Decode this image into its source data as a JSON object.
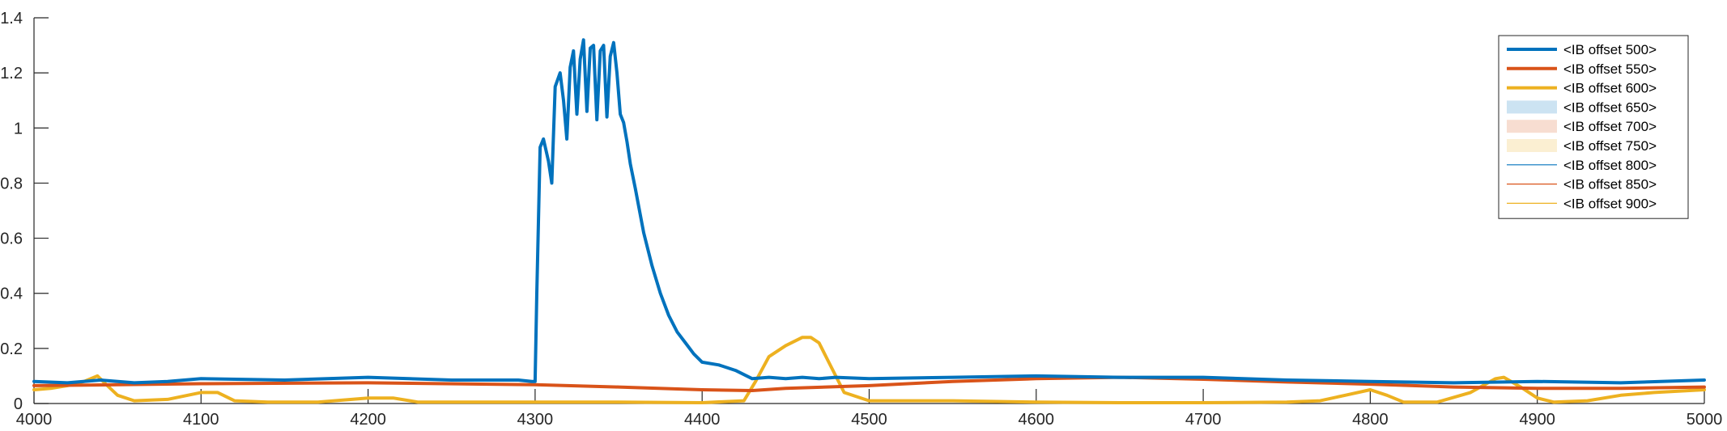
{
  "chart_data": {
    "type": "line",
    "title": "",
    "xlabel": "",
    "ylabel": "",
    "xlim": [
      4000,
      5000
    ],
    "ylim": [
      0,
      1.4
    ],
    "xticks": [
      "4000",
      "4100",
      "4200",
      "4300",
      "4400",
      "4500",
      "4600",
      "4700",
      "4800",
      "4900",
      "5000"
    ],
    "yticks": [
      "0",
      "0.2",
      "0.4",
      "0.6",
      "0.8",
      "1",
      "1.2",
      "1.4"
    ],
    "grid": false,
    "legend_position": "top-right",
    "series": [
      {
        "name": "<IB offset 500>",
        "color": "#0072BD",
        "style": "line-thick",
        "x": [
          4000,
          4020,
          4040,
          4060,
          4080,
          4100,
          4150,
          4200,
          4250,
          4290,
          4298,
          4300,
          4301,
          4303,
          4305,
          4308,
          4310,
          4312,
          4315,
          4317,
          4319,
          4321,
          4323,
          4325,
          4327,
          4329,
          4331,
          4333,
          4335,
          4337,
          4339,
          4341,
          4343,
          4345,
          4347,
          4349,
          4351,
          4353,
          4355,
          4357,
          4360,
          4365,
          4370,
          4375,
          4380,
          4385,
          4390,
          4395,
          4400,
          4410,
          4420,
          4430,
          4440,
          4450,
          4460,
          4470,
          4480,
          4500,
          4550,
          4600,
          4650,
          4700,
          4750,
          4800,
          4850,
          4900,
          4950,
          5000
        ],
        "y": [
          0.08,
          0.075,
          0.085,
          0.075,
          0.08,
          0.09,
          0.085,
          0.095,
          0.085,
          0.085,
          0.08,
          0.08,
          0.4,
          0.93,
          0.96,
          0.88,
          0.8,
          1.15,
          1.2,
          1.1,
          0.96,
          1.22,
          1.28,
          1.05,
          1.25,
          1.32,
          1.06,
          1.29,
          1.3,
          1.03,
          1.28,
          1.3,
          1.04,
          1.26,
          1.31,
          1.2,
          1.05,
          1.02,
          0.95,
          0.87,
          0.78,
          0.62,
          0.5,
          0.4,
          0.32,
          0.26,
          0.22,
          0.18,
          0.15,
          0.14,
          0.12,
          0.09,
          0.095,
          0.09,
          0.095,
          0.09,
          0.095,
          0.09,
          0.095,
          0.1,
          0.095,
          0.095,
          0.085,
          0.08,
          0.075,
          0.08,
          0.075,
          0.085
        ]
      },
      {
        "name": "<IB offset 550>",
        "color": "#D95319",
        "style": "line-thick",
        "x": [
          4000,
          4050,
          4100,
          4200,
          4300,
          4350,
          4400,
          4430,
          4450,
          4500,
          4550,
          4600,
          4650,
          4700,
          4750,
          4800,
          4850,
          4900,
          4950,
          5000
        ],
        "y": [
          0.065,
          0.068,
          0.072,
          0.075,
          0.068,
          0.06,
          0.05,
          0.047,
          0.055,
          0.065,
          0.08,
          0.09,
          0.095,
          0.088,
          0.078,
          0.07,
          0.06,
          0.055,
          0.055,
          0.06
        ]
      },
      {
        "name": "<IB offset 600>",
        "color": "#EDB120",
        "style": "line-thick",
        "x": [
          4000,
          4010,
          4020,
          4030,
          4038,
          4043,
          4050,
          4060,
          4080,
          4100,
          4110,
          4120,
          4140,
          4170,
          4200,
          4215,
          4230,
          4260,
          4300,
          4350,
          4400,
          4425,
          4432,
          4440,
          4450,
          4460,
          4465,
          4470,
          4475,
          4485,
          4500,
          4550,
          4600,
          4650,
          4700,
          4750,
          4770,
          4785,
          4800,
          4810,
          4820,
          4840,
          4860,
          4875,
          4880,
          4890,
          4900,
          4910,
          4930,
          4950,
          4970,
          5000
        ],
        "y": [
          0.05,
          0.055,
          0.065,
          0.08,
          0.1,
          0.07,
          0.03,
          0.01,
          0.015,
          0.04,
          0.04,
          0.01,
          0.005,
          0.005,
          0.02,
          0.02,
          0.005,
          0.005,
          0.005,
          0.005,
          0.003,
          0.01,
          0.08,
          0.17,
          0.21,
          0.24,
          0.24,
          0.22,
          0.16,
          0.04,
          0.01,
          0.01,
          0.005,
          0.003,
          0.003,
          0.005,
          0.01,
          0.03,
          0.05,
          0.03,
          0.005,
          0.005,
          0.04,
          0.09,
          0.095,
          0.06,
          0.02,
          0.005,
          0.01,
          0.03,
          0.04,
          0.05
        ]
      },
      {
        "name": "<IB offset 650>",
        "color": "#0072BD",
        "style": "patch-light"
      },
      {
        "name": "<IB offset 700>",
        "color": "#D95319",
        "style": "patch-light"
      },
      {
        "name": "<IB offset 750>",
        "color": "#EDB120",
        "style": "patch-light"
      },
      {
        "name": "<IB offset 800>",
        "color": "#0072BD",
        "style": "line-thin"
      },
      {
        "name": "<IB offset 850>",
        "color": "#D95319",
        "style": "line-thin"
      },
      {
        "name": "<IB offset 900>",
        "color": "#EDB120",
        "style": "line-thin"
      }
    ]
  }
}
